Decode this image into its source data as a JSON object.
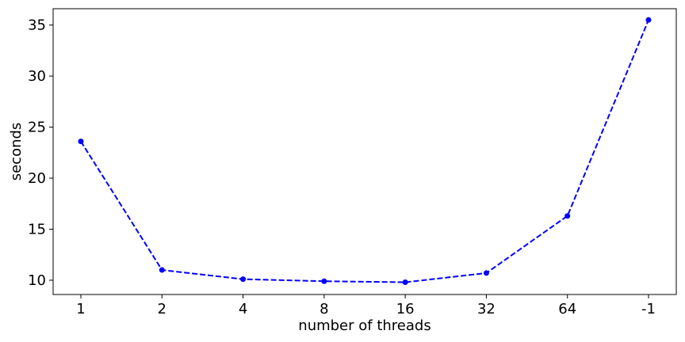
{
  "chart_data": {
    "type": "line",
    "title": "",
    "xlabel": "number of threads",
    "ylabel": "seconds",
    "categories": [
      "1",
      "2",
      "4",
      "8",
      "16",
      "32",
      "64",
      "-1"
    ],
    "series": [
      {
        "values": [
          23.6,
          11.0,
          10.1,
          9.9,
          9.8,
          10.7,
          16.3,
          35.5
        ],
        "color": "#0000ff",
        "line_style": "dashed",
        "marker": "circle"
      }
    ],
    "ylim": [
      8.6,
      36.6
    ],
    "yticks": [
      10,
      15,
      20,
      25,
      30,
      35
    ],
    "grid": false,
    "legend": "none"
  }
}
